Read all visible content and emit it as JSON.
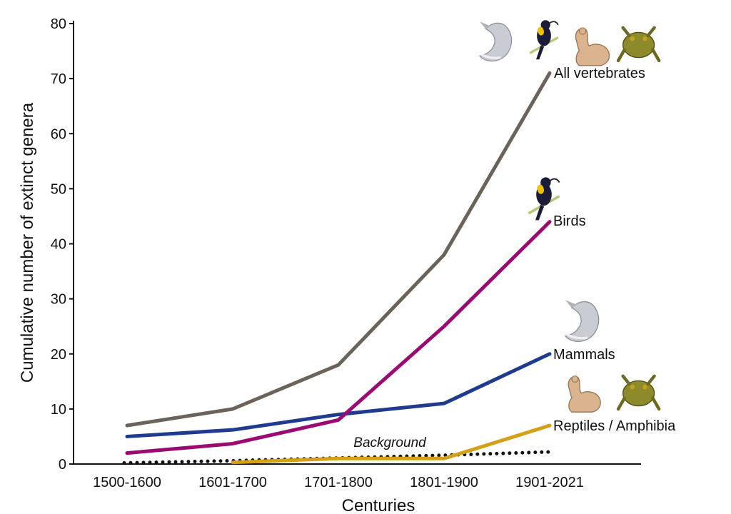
{
  "chart_data": {
    "type": "line",
    "xlabel": "Centuries",
    "ylabel": "Cumulative number of extinct genera",
    "categories": [
      "1500-1600",
      "1601-1700",
      "1701-1800",
      "1801-1900",
      "1901-2021"
    ],
    "ylim": [
      0,
      80
    ],
    "yticks": [
      0,
      10,
      20,
      30,
      40,
      50,
      60,
      70,
      80
    ],
    "grid": false,
    "series": [
      {
        "name": "All vertebrates",
        "color": "#6b6359",
        "values": [
          7,
          10,
          18,
          38,
          71
        ],
        "style": "solid",
        "icons": [
          "mammal-icon",
          "bird-icon",
          "reptile-icon",
          "amphibian-icon"
        ]
      },
      {
        "name": "Birds",
        "color": "#9b0a72",
        "values": [
          2,
          3.7,
          8,
          25,
          44
        ],
        "style": "solid",
        "icons": [
          "bird-icon"
        ]
      },
      {
        "name": "Mammals",
        "color": "#1f3b8f",
        "values": [
          5,
          6.2,
          9,
          11,
          20
        ],
        "style": "solid",
        "icons": [
          "mammal-icon"
        ]
      },
      {
        "name": "Reptiles / Amphibia",
        "color": "#d4a017",
        "values": [
          null,
          0.3,
          1,
          1,
          7
        ],
        "style": "solid",
        "icons": [
          "reptile-icon",
          "amphibian-icon"
        ]
      },
      {
        "name": "Background",
        "color": "#111111",
        "values": [
          0.2,
          0.6,
          1.1,
          1.6,
          2.2
        ],
        "style": "dotted"
      }
    ]
  }
}
